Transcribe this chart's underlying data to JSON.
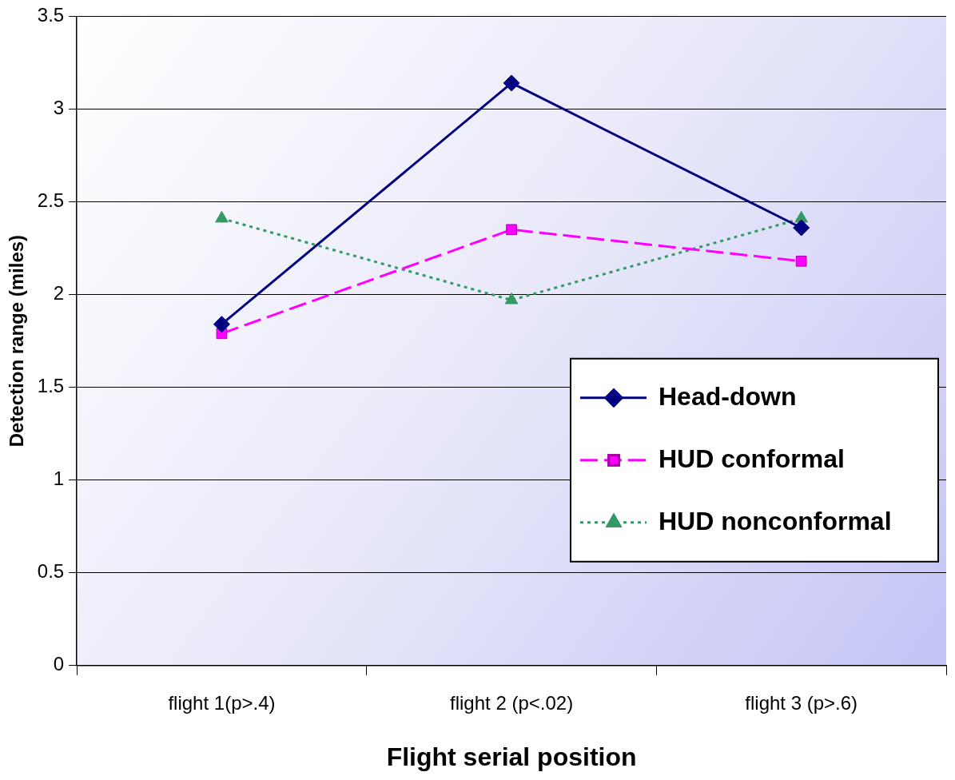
{
  "chart_data": {
    "type": "line",
    "xlabel": "Flight serial position",
    "ylabel": "Detection range (miles)",
    "categories": [
      "flight 1(p>.4)",
      "flight 2 (p<.02)",
      "flight 3 (p>.6)"
    ],
    "series": [
      {
        "name": "Head-down",
        "color": "#000080",
        "values": [
          1.84,
          3.14,
          2.36
        ],
        "marker": "diamond",
        "line_style": "solid"
      },
      {
        "name": "HUD conformal",
        "color": "#ff00ff",
        "values": [
          1.79,
          2.35,
          2.18
        ],
        "marker": "square",
        "line_style": "dashed"
      },
      {
        "name": "HUD nonconformal",
        "color": "#339966",
        "values": [
          2.41,
          1.97,
          2.41
        ],
        "marker": "triangle",
        "line_style": "dotted"
      }
    ],
    "ylim": [
      0,
      3.5
    ],
    "yticks": [
      0,
      0.5,
      1,
      1.5,
      2,
      2.5,
      3,
      3.5
    ],
    "grid": "y",
    "legend": "bottom right"
  }
}
